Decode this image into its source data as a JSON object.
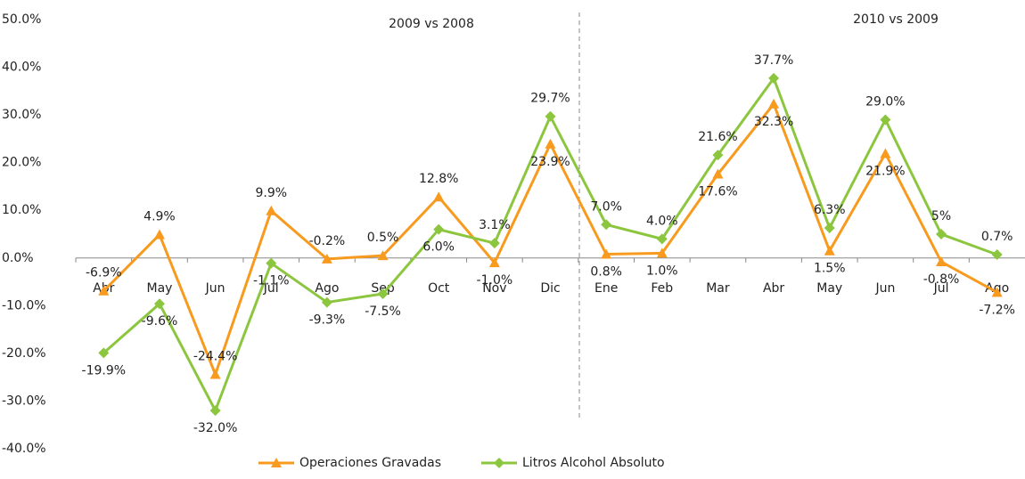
{
  "chart_data": {
    "type": "line",
    "annotations": [
      "2009 vs 2008",
      "2010  vs 2009"
    ],
    "categories": [
      "Abr",
      "May",
      "Jun",
      "Jul",
      "Ago",
      "Sep",
      "Oct",
      "Nov",
      "Dic",
      "Ene",
      "Feb",
      "Mar",
      "Abr",
      "May",
      "Jun",
      "Jul",
      "Ago"
    ],
    "series": [
      {
        "name": "Operaciones Gravadas",
        "color": "#f79a1e",
        "marker": "triangle",
        "values": [
          -6.9,
          4.9,
          -24.4,
          9.9,
          -0.2,
          0.5,
          12.8,
          -1.0,
          23.9,
          0.8,
          1.0,
          17.6,
          32.3,
          1.5,
          21.9,
          -0.8,
          -7.2
        ],
        "value_labels": [
          "-6.9%",
          "4.9%",
          "-24.4%",
          "9.9%",
          "-0.2%",
          "0.5%",
          "12.8%",
          "-1.0%",
          "23.9%",
          "0.8%",
          "1.0%",
          "17.6%",
          "32.3%",
          "1.5%",
          "21.9%",
          "-0.8%",
          "-7.2%"
        ]
      },
      {
        "name": "Litros Alcohol Absoluto",
        "color": "#8cc63f",
        "marker": "diamond",
        "values": [
          -19.9,
          -9.6,
          -32.0,
          -1.1,
          -9.3,
          -7.5,
          6.0,
          3.1,
          29.7,
          7.0,
          4.0,
          21.6,
          37.7,
          6.3,
          29.0,
          5,
          0.7
        ],
        "value_labels": [
          "-19.9%",
          "-9.6%",
          "-32.0%",
          "-1.1%",
          "-9.3%",
          "-7.5%",
          "6.0%",
          "3.1%",
          "29.7%",
          "7.0%",
          "4.0%",
          "21.6%",
          "37.7%",
          "6.3%",
          "29.0%",
          "5%",
          "0.7%"
        ]
      }
    ],
    "ylim": [
      -40,
      50
    ],
    "yticks": [
      {
        "value": -40,
        "label": "-40.0%"
      },
      {
        "value": -30,
        "label": "-30.0%"
      },
      {
        "value": -20,
        "label": "-20.0%"
      },
      {
        "value": -10,
        "label": "-10.0%"
      },
      {
        "value": 0,
        "label": "0.0%"
      },
      {
        "value": 10,
        "label": "10.0%"
      },
      {
        "value": 20,
        "label": "20.0%"
      },
      {
        "value": 30,
        "label": "30.0%"
      },
      {
        "value": 40,
        "label": "40.0%"
      },
      {
        "value": 50,
        "label": "50.0%"
      }
    ],
    "legend": "bottom"
  }
}
